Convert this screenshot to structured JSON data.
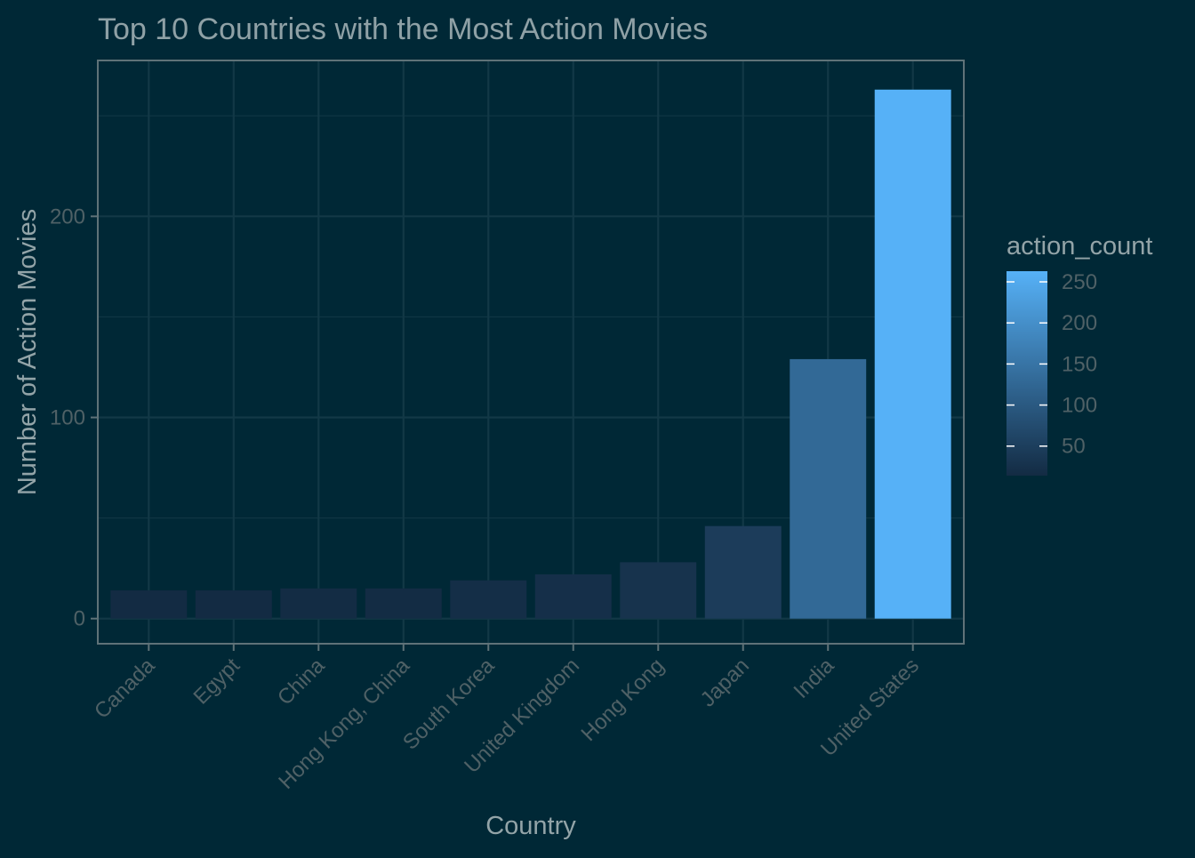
{
  "chart_data": {
    "type": "bar",
    "title": "Top 10 Countries with the Most Action Movies",
    "xlabel": "Country",
    "ylabel": "Number of Action Movies",
    "categories": [
      "Canada",
      "Egypt",
      "China",
      "Hong Kong, China",
      "South Korea",
      "United Kingdom",
      "Hong Kong",
      "Japan",
      "India",
      "United States"
    ],
    "values": [
      14,
      14,
      15,
      15,
      19,
      22,
      28,
      46,
      129,
      263
    ],
    "ylim": [
      -12.5,
      277.5
    ],
    "yticks": [
      0,
      100,
      200
    ],
    "grid": true,
    "legend": {
      "title": "action_count",
      "position": "right",
      "ticks": [
        50,
        100,
        150,
        200,
        250
      ],
      "range": [
        14,
        263
      ],
      "color_low": "#132B43",
      "color_high": "#56B1F7"
    }
  },
  "colors": {
    "background": "#002836",
    "panel_border": "#5f7278",
    "grid": "#123846",
    "title": "#8fa1a6",
    "axis_label": "#93a4a8",
    "tick_label": "#4f6166"
  }
}
